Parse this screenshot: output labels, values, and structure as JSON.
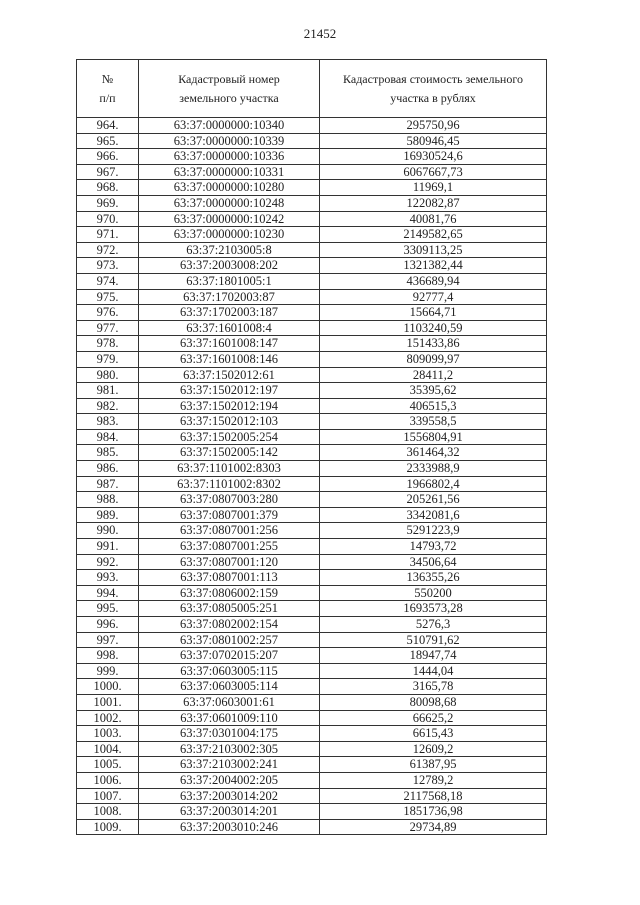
{
  "page_number": "21452",
  "table": {
    "headers": [
      [
        "№",
        "п/п"
      ],
      [
        "Кадастровый номер",
        "земельного участка"
      ],
      [
        "Кадастровая стоимость земельного",
        "участка в рублях"
      ]
    ],
    "rows": [
      [
        "964.",
        "63:37:0000000:10340",
        "295750,96"
      ],
      [
        "965.",
        "63:37:0000000:10339",
        "580946,45"
      ],
      [
        "966.",
        "63:37:0000000:10336",
        "16930524,6"
      ],
      [
        "967.",
        "63:37:0000000:10331",
        "6067667,73"
      ],
      [
        "968.",
        "63:37:0000000:10280",
        "11969,1"
      ],
      [
        "969.",
        "63:37:0000000:10248",
        "122082,87"
      ],
      [
        "970.",
        "63:37:0000000:10242",
        "40081,76"
      ],
      [
        "971.",
        "63:37:0000000:10230",
        "2149582,65"
      ],
      [
        "972.",
        "63:37:2103005:8",
        "3309113,25"
      ],
      [
        "973.",
        "63:37:2003008:202",
        "1321382,44"
      ],
      [
        "974.",
        "63:37:1801005:1",
        "436689,94"
      ],
      [
        "975.",
        "63:37:1702003:87",
        "92777,4"
      ],
      [
        "976.",
        "63:37:1702003:187",
        "15664,71"
      ],
      [
        "977.",
        "63:37:1601008:4",
        "1103240,59"
      ],
      [
        "978.",
        "63:37:1601008:147",
        "151433,86"
      ],
      [
        "979.",
        "63:37:1601008:146",
        "809099,97"
      ],
      [
        "980.",
        "63:37:1502012:61",
        "28411,2"
      ],
      [
        "981.",
        "63:37:1502012:197",
        "35395,62"
      ],
      [
        "982.",
        "63:37:1502012:194",
        "406515,3"
      ],
      [
        "983.",
        "63:37:1502012:103",
        "339558,5"
      ],
      [
        "984.",
        "63:37:1502005:254",
        "1556804,91"
      ],
      [
        "985.",
        "63:37:1502005:142",
        "361464,32"
      ],
      [
        "986.",
        "63:37:1101002:8303",
        "2333988,9"
      ],
      [
        "987.",
        "63:37:1101002:8302",
        "1966802,4"
      ],
      [
        "988.",
        "63:37:0807003:280",
        "205261,56"
      ],
      [
        "989.",
        "63:37:0807001:379",
        "3342081,6"
      ],
      [
        "990.",
        "63:37:0807001:256",
        "5291223,9"
      ],
      [
        "991.",
        "63:37:0807001:255",
        "14793,72"
      ],
      [
        "992.",
        "63:37:0807001:120",
        "34506,64"
      ],
      [
        "993.",
        "63:37:0807001:113",
        "136355,26"
      ],
      [
        "994.",
        "63:37:0806002:159",
        "550200"
      ],
      [
        "995.",
        "63:37:0805005:251",
        "1693573,28"
      ],
      [
        "996.",
        "63:37:0802002:154",
        "5276,3"
      ],
      [
        "997.",
        "63:37:0801002:257",
        "510791,62"
      ],
      [
        "998.",
        "63:37:0702015:207",
        "18947,74"
      ],
      [
        "999.",
        "63:37:0603005:115",
        "1444,04"
      ],
      [
        "1000.",
        "63:37:0603005:114",
        "3165,78"
      ],
      [
        "1001.",
        "63:37:0603001:61",
        "80098,68"
      ],
      [
        "1002.",
        "63:37:0601009:110",
        "66625,2"
      ],
      [
        "1003.",
        "63:37:0301004:175",
        "6615,43"
      ],
      [
        "1004.",
        "63:37:2103002:305",
        "12609,2"
      ],
      [
        "1005.",
        "63:37:2103002:241",
        "61387,95"
      ],
      [
        "1006.",
        "63:37:2004002:205",
        "12789,2"
      ],
      [
        "1007.",
        "63:37:2003014:202",
        "2117568,18"
      ],
      [
        "1008.",
        "63:37:2003014:201",
        "1851736,98"
      ],
      [
        "1009.",
        "63:37:2003010:246",
        "29734,89"
      ]
    ]
  }
}
